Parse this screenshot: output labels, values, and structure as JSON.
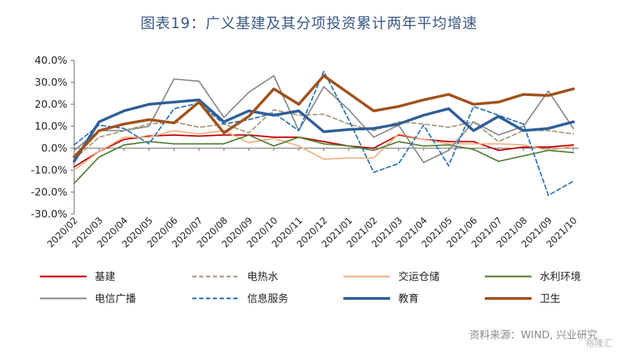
{
  "chart_data": {
    "type": "line",
    "title": "图表19：广义基建及其分项投资累计两年平均增速",
    "categories": [
      "2020/02",
      "2020/03",
      "2020/04",
      "2020/05",
      "2020/06",
      "2020/07",
      "2020/08",
      "2020/09",
      "2020/10",
      "2020/11",
      "2020/12",
      "2021/01",
      "2021/02",
      "2021/03",
      "2021/04",
      "2021/05",
      "2021/06",
      "2021/07",
      "2021/08",
      "2021/09",
      "2021/10"
    ],
    "y_ticks": [
      "40.0%",
      "30.0%",
      "20.0%",
      "10.0%",
      "0.0%",
      "-10.0%",
      "-20.0%",
      "-30.0%"
    ],
    "ylim": [
      -30,
      40
    ],
    "series": [
      {
        "name": "基建",
        "color": "#c00000",
        "dash": "",
        "width": 2,
        "values": [
          -8.5,
          -1.5,
          4,
          5.5,
          6,
          5.5,
          6,
          6,
          5,
          5,
          3,
          1,
          0,
          6,
          4,
          3,
          3,
          -1,
          0.5,
          0.5,
          1.5
        ]
      },
      {
        "name": "电热水",
        "color": "#a99b7a",
        "dash": "6,4",
        "width": 2,
        "values": [
          -5,
          5,
          8,
          11,
          12,
          9.5,
          11,
          7,
          17.5,
          15,
          15.5,
          11,
          8,
          12,
          11,
          9.5,
          12,
          3,
          8,
          8,
          6.5
        ]
      },
      {
        "name": "交运仓储",
        "color": "#f4b183",
        "dash": "",
        "width": 2,
        "values": [
          -10,
          -1.5,
          5,
          5,
          8,
          6.5,
          8,
          2.5,
          4.5,
          1,
          -5,
          -4.5,
          -4.5,
          6.5,
          4,
          2,
          2,
          2,
          1.5,
          -1,
          1
        ]
      },
      {
        "name": "水利环境",
        "color": "#548235",
        "dash": "",
        "width": 2,
        "values": [
          -16,
          -4,
          1.5,
          3,
          2,
          2,
          2,
          6,
          1,
          5,
          2,
          1,
          -1,
          3,
          1,
          1.5,
          -0.5,
          -6,
          -3.5,
          -1,
          -2
        ]
      },
      {
        "name": "电信广播",
        "color": "#8c8c8c",
        "dash": "",
        "width": 2,
        "values": [
          -1,
          8,
          8,
          10,
          31.5,
          30.5,
          14,
          25.5,
          33,
          8,
          28,
          17.5,
          5,
          10.5,
          -6.5,
          -1,
          12,
          6,
          10,
          26,
          9
        ]
      },
      {
        "name": "信息服务",
        "color": "#2e75b6",
        "dash": "6,4",
        "width": 2,
        "values": [
          1.5,
          10.5,
          9,
          2,
          18,
          20.5,
          11,
          13,
          16,
          8,
          35,
          13,
          -11,
          -7,
          10.5,
          -8,
          19,
          15,
          11,
          -21.5,
          -15
        ]
      },
      {
        "name": "教育",
        "color": "#2f5f99",
        "dash": "",
        "width": 4,
        "values": [
          -6,
          12,
          17,
          20,
          21,
          22,
          12,
          17,
          15,
          17,
          7.5,
          8.5,
          9,
          11,
          15,
          18,
          8,
          14.5,
          8,
          9,
          12
        ]
      },
      {
        "name": "卫生",
        "color": "#a0521d",
        "dash": "",
        "width": 4,
        "values": [
          -4,
          8,
          11,
          13,
          11.5,
          21,
          7,
          14.5,
          27,
          20,
          33,
          25,
          17,
          19,
          22,
          24.5,
          20,
          21,
          24.5,
          24,
          27
        ]
      }
    ]
  },
  "source": "资料来源：WIND, 兴业研究",
  "watermark": "格隆汇"
}
